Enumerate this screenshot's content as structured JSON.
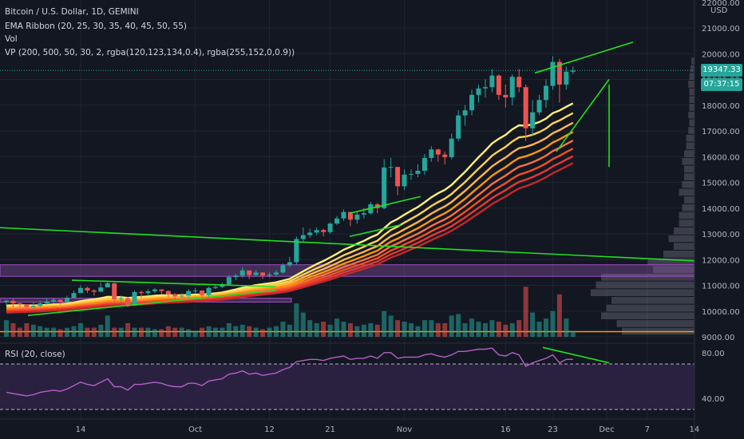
{
  "header": {
    "symbol_line": "Bitcoin / U.S. Dollar, 1D, GEMINI",
    "indicator_ema": "EMA Ribbon (20, 25, 30, 35, 40, 45, 50, 55)",
    "indicator_vol": "Vol",
    "indicator_vp": "VP (200, 500, 50, 30, 2, rgba(120,123,134,0.4), rgba(255,152,0,0.9))",
    "rsi_label": "RSI (20, close)"
  },
  "price_scale": {
    "currency": "USD",
    "current_price": "19347.33",
    "countdown": "07:37:15",
    "top_label": "22000.00"
  },
  "colors": {
    "background": "#131722",
    "up": "#26a69a",
    "down": "#ef5350",
    "trendline": "#22e022",
    "rsi": "#b45fc7",
    "rsi_band": "#2a2140",
    "value_area": "#ff9800"
  },
  "chart_data": [
    {
      "type": "candlestick",
      "title": "Bitcoin / U.S. Dollar, 1D, GEMINI",
      "xlabel": "",
      "ylabel": "",
      "ylim": [
        9000,
        22000
      ],
      "y_ticks": [
        "9000.00",
        "10000.00",
        "11000.00",
        "12000.00",
        "13000.00",
        "14000.00",
        "15000.00",
        "16000.00",
        "17000.00",
        "18000.00",
        "19000.00",
        "20000.00",
        "21000.00"
      ],
      "x_ticks": [
        {
          "label": "14",
          "date": "2020-09-14"
        },
        {
          "label": "Oct",
          "date": "2020-10-01"
        },
        {
          "label": "12",
          "date": "2020-10-12"
        },
        {
          "label": "21",
          "date": "2020-10-21"
        },
        {
          "label": "Nov",
          "date": "2020-11-01"
        },
        {
          "label": "16",
          "date": "2020-11-16"
        },
        {
          "label": "23",
          "date": "2020-11-23"
        },
        {
          "label": "Dec",
          "date": "2020-12-01"
        },
        {
          "label": "7",
          "date": "2020-12-07"
        },
        {
          "label": "14",
          "date": "2020-12-14"
        }
      ],
      "start_date": "2020-09-03",
      "close": [
        10400,
        10300,
        10250,
        10150,
        10200,
        10300,
        10380,
        10440,
        10350,
        10520,
        10700,
        10900,
        10800,
        10750,
        10920,
        11080,
        10460,
        10500,
        10220,
        10740,
        10700,
        10770,
        10840,
        10780,
        10650,
        10570,
        10600,
        10780,
        10800,
        10620,
        10900,
        10940,
        11040,
        11320,
        11380,
        11580,
        11400,
        11500,
        11380,
        11420,
        11500,
        11780,
        11900,
        12800,
        12950,
        13050,
        13150,
        13070,
        13400,
        13600,
        13850,
        13550,
        13750,
        13800,
        14150,
        14000,
        15580,
        15600,
        14850,
        15300,
        15330,
        15450,
        15950,
        16280,
        16080,
        15980,
        16700,
        17600,
        17800,
        18400,
        18650,
        18700,
        19150,
        18400,
        18300,
        19100,
        18700,
        17100,
        17720,
        18200,
        18750,
        19680,
        18800,
        19300,
        19347
      ],
      "high": [
        10450,
        10500,
        10350,
        10250,
        10350,
        10400,
        10500,
        10500,
        10450,
        10600,
        10800,
        11000,
        10950,
        10850,
        11100,
        11150,
        11100,
        10600,
        10550,
        10800,
        10800,
        10850,
        10900,
        10850,
        10800,
        10700,
        10700,
        10850,
        10900,
        10800,
        10950,
        11000,
        11100,
        11400,
        11450,
        11700,
        11550,
        11600,
        11500,
        11500,
        11600,
        11850,
        12100,
        12900,
        13250,
        13200,
        13250,
        13200,
        13450,
        13700,
        13950,
        13850,
        13850,
        14000,
        14250,
        14200,
        15900,
        15950,
        15600,
        15500,
        15500,
        15700,
        16100,
        16400,
        16300,
        16200,
        16900,
        17800,
        18000,
        18600,
        18800,
        19000,
        19400,
        19200,
        18800,
        19200,
        19400,
        18800,
        18200,
        18400,
        19000,
        19900,
        19800,
        19500,
        19500
      ],
      "low": [
        10200,
        10150,
        10150,
        10000,
        10050,
        10150,
        10250,
        10300,
        10250,
        10350,
        10500,
        10800,
        10700,
        10600,
        10750,
        10950,
        10300,
        10300,
        10150,
        10200,
        10500,
        10600,
        10700,
        10650,
        10550,
        10450,
        10500,
        10550,
        10700,
        10550,
        10550,
        10850,
        10900,
        11000,
        11200,
        11300,
        11250,
        11350,
        11250,
        11300,
        11350,
        11450,
        11700,
        11800,
        12700,
        12850,
        12950,
        12900,
        13000,
        13350,
        13500,
        13300,
        13400,
        13600,
        13750,
        13800,
        13950,
        15200,
        14500,
        14700,
        15100,
        15200,
        15300,
        15800,
        15800,
        15700,
        15900,
        16600,
        17200,
        17600,
        18100,
        18300,
        18500,
        18200,
        17900,
        18000,
        18500,
        16600,
        16800,
        17600,
        17900,
        18600,
        18100,
        18600,
        19200
      ]
    },
    {
      "type": "bar",
      "title": "Vol",
      "values": [
        1.1,
        0.9,
        0.6,
        0.9,
        0.8,
        0.7,
        0.6,
        0.6,
        0.5,
        0.6,
        0.7,
        0.9,
        0.6,
        0.6,
        0.8,
        1.4,
        0.6,
        0.6,
        0.9,
        0.6,
        0.6,
        0.6,
        0.5,
        0.5,
        0.7,
        0.6,
        0.6,
        0.5,
        0.4,
        0.6,
        0.7,
        0.6,
        0.6,
        0.9,
        0.7,
        0.8,
        0.7,
        0.6,
        0.5,
        0.6,
        0.7,
        1.0,
        0.8,
        2.2,
        1.6,
        1.1,
        0.9,
        1.0,
        0.8,
        1.2,
        1.0,
        0.9,
        0.7,
        0.8,
        0.9,
        0.8,
        1.7,
        1.4,
        1.1,
        1.0,
        0.9,
        0.7,
        1.1,
        1.1,
        0.9,
        0.9,
        1.4,
        1.5,
        0.9,
        1.2,
        1.0,
        0.9,
        1.1,
        1.0,
        0.8,
        0.9,
        1.1,
        3.3,
        1.6,
        1.0,
        1.2,
        1.7,
        2.8,
        1.2,
        0.4
      ]
    },
    {
      "type": "line",
      "title": "RSI (20, close)",
      "ylim": [
        30,
        85
      ],
      "y_ticks": [
        "80.00",
        "40.00"
      ],
      "bands": [
        70,
        30
      ],
      "values": [
        45,
        44,
        43,
        42,
        43,
        45,
        46,
        47,
        46,
        48,
        51,
        54,
        52,
        51,
        54,
        57,
        50,
        50,
        47,
        52,
        52,
        53,
        54,
        53,
        51,
        50,
        50,
        53,
        53,
        51,
        55,
        56,
        57,
        61,
        62,
        64,
        61,
        62,
        60,
        61,
        62,
        65,
        67,
        72,
        73,
        74,
        74,
        73,
        75,
        76,
        77,
        74,
        75,
        75,
        77,
        75,
        80,
        80,
        75,
        76,
        76,
        76,
        78,
        79,
        77,
        76,
        78,
        81,
        81,
        82,
        83,
        83,
        84,
        78,
        77,
        80,
        78,
        68,
        71,
        73,
        75,
        78,
        71,
        74,
        74
      ]
    },
    {
      "type": "area",
      "title": "VP (200, 500, 50, 30, 2, rgba(120,123,134,0.4), rgba(255,152,0,0.9))",
      "price_bins": [
        9200,
        9500,
        9800,
        10100,
        10400,
        10700,
        11000,
        11300,
        11600,
        11900,
        12200,
        12500,
        12800,
        13100,
        13400,
        13700,
        14000,
        14300,
        14600,
        14900,
        15200,
        15500,
        15800,
        16100,
        16400,
        16700,
        17000,
        17300,
        17600,
        17900,
        18200,
        18500,
        18800,
        19100,
        19400,
        19700
      ],
      "volumes": [
        0.7,
        0.75,
        0.9,
        0.85,
        0.8,
        1.0,
        0.95,
        0.9,
        0.4,
        0.45,
        0.3,
        0.2,
        0.25,
        0.2,
        0.15,
        0.15,
        0.12,
        0.1,
        0.15,
        0.12,
        0.1,
        0.1,
        0.12,
        0.1,
        0.08,
        0.08,
        0.06,
        0.05,
        0.06,
        0.05,
        0.05,
        0.05,
        0.06,
        0.05,
        0.04,
        0.03
      ]
    },
    {
      "type": "line",
      "title": "EMA Ribbon (20, 25, 30, 35, 40, 45, 50, 55)",
      "periods": [
        20,
        25,
        30,
        35,
        40,
        45,
        50,
        55
      ],
      "colors": [
        "#fff176",
        "#ffd54f",
        "#ffb74d",
        "#ff9800",
        "#ff7043",
        "#f4511e",
        "#e53935",
        "#c62828"
      ]
    }
  ]
}
